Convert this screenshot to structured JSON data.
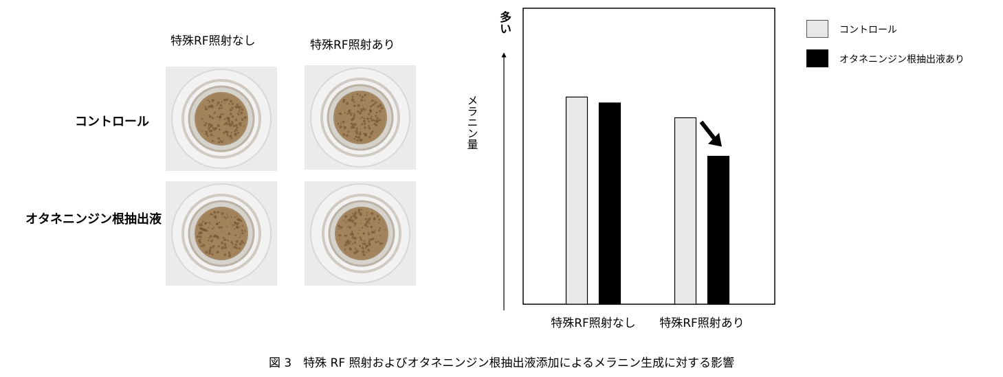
{
  "photos": {
    "column_headers": [
      "特殊RF照射なし",
      "特殊RF照射あり"
    ],
    "row_headers": [
      "コントロール",
      "オタネニンジン根抽出液"
    ],
    "colors": {
      "paper": "#ebebeb",
      "ring": "#d6d2cc",
      "well_edge": "#a28a69",
      "cell": "#a3835c",
      "speckle": "#6b4c2e"
    }
  },
  "chart_data": {
    "type": "bar",
    "categories": [
      "特殊RF照射なし",
      "特殊RF照射あり"
    ],
    "series": [
      {
        "name": "コントロール",
        "values": [
          0.7,
          0.63
        ],
        "color": "#e8e8e8"
      },
      {
        "name": "オタネニンジン根抽出液あり",
        "values": [
          0.68,
          0.5
        ],
        "color": "#000000"
      }
    ],
    "ylabel_top": "多い",
    "ylabel": "メラニン量",
    "ylim": [
      0,
      1
    ],
    "yticks": false,
    "grid": false,
    "legend_position": "right",
    "annotation": {
      "text": "",
      "kind": "arrow-down-right",
      "target_category": 1,
      "target_series": 1
    }
  },
  "caption": "図 3　特殊 RF 照射およびオタネニンジン根抽出液添加によるメラニン生成に対する影響"
}
